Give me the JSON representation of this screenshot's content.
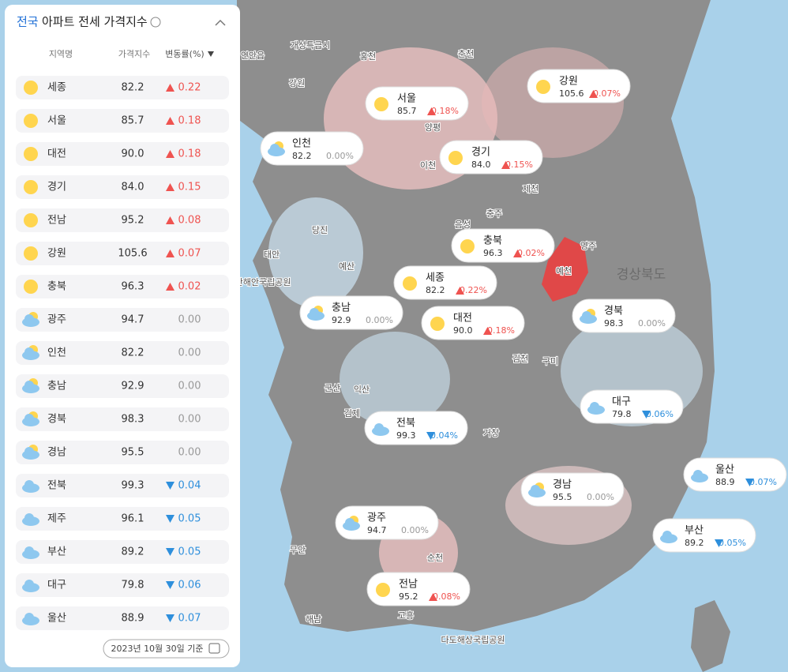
{
  "panel": {
    "title_prefix": "전국",
    "title": "아파트 전세 가격지수",
    "headers": [
      "지역명",
      "가격지수",
      "변동률(%)"
    ],
    "rows": [
      {
        "region": "세종",
        "index": "82.2",
        "change": "0.22",
        "trend": "up",
        "weather": "sun"
      },
      {
        "region": "서울",
        "index": "85.7",
        "change": "0.18",
        "trend": "up",
        "weather": "sun"
      },
      {
        "region": "대전",
        "index": "90.0",
        "change": "0.18",
        "trend": "up",
        "weather": "sun"
      },
      {
        "region": "경기",
        "index": "84.0",
        "change": "0.15",
        "trend": "up",
        "weather": "sun"
      },
      {
        "region": "전남",
        "index": "95.2",
        "change": "0.08",
        "trend": "up",
        "weather": "sun"
      },
      {
        "region": "강원",
        "index": "105.6",
        "change": "0.07",
        "trend": "up",
        "weather": "sun"
      },
      {
        "region": "충북",
        "index": "96.3",
        "change": "0.02",
        "trend": "up",
        "weather": "sun"
      },
      {
        "region": "광주",
        "index": "94.7",
        "change": "0.00",
        "trend": "flat",
        "weather": "partly"
      },
      {
        "region": "인천",
        "index": "82.2",
        "change": "0.00",
        "trend": "flat",
        "weather": "partly"
      },
      {
        "region": "충남",
        "index": "92.9",
        "change": "0.00",
        "trend": "flat",
        "weather": "partly"
      },
      {
        "region": "경북",
        "index": "98.3",
        "change": "0.00",
        "trend": "flat",
        "weather": "partly"
      },
      {
        "region": "경남",
        "index": "95.5",
        "change": "0.00",
        "trend": "flat",
        "weather": "partly"
      },
      {
        "region": "전북",
        "index": "99.3",
        "change": "0.04",
        "trend": "down",
        "weather": "cloud"
      },
      {
        "region": "제주",
        "index": "96.1",
        "change": "0.05",
        "trend": "down",
        "weather": "cloud"
      },
      {
        "region": "부산",
        "index": "89.2",
        "change": "0.05",
        "trend": "down",
        "weather": "cloud"
      },
      {
        "region": "대구",
        "index": "79.8",
        "change": "0.06",
        "trend": "down",
        "weather": "cloud"
      },
      {
        "region": "울산",
        "index": "88.9",
        "change": "0.07",
        "trend": "down",
        "weather": "cloud"
      }
    ],
    "date": "2023년 10월 30일 기준"
  },
  "map": {
    "places": [
      "개성특급시",
      "연안읍",
      "춘천",
      "강원",
      "홍천",
      "양평",
      "이천",
      "제천",
      "충주",
      "음성",
      "당진",
      "태안",
      "예산",
      "예천",
      "영주",
      "경상북도",
      "김천",
      "구미",
      "군산",
      "익산",
      "김제",
      "거창",
      "순천",
      "고흥",
      "무안",
      "해남",
      "다도해상국립공원",
      "태안해안국립공원"
    ],
    "callouts": [
      {
        "region": "서울",
        "index": "85.7",
        "change": "0.18%",
        "trend": "up",
        "weather": "sun"
      },
      {
        "region": "강원",
        "index": "105.6",
        "change": "0.07%",
        "trend": "up",
        "weather": "sun"
      },
      {
        "region": "인천",
        "index": "82.2",
        "change": "0.00%",
        "trend": "flat",
        "weather": "partly"
      },
      {
        "region": "경기",
        "index": "84.0",
        "change": "0.15%",
        "trend": "up",
        "weather": "sun"
      },
      {
        "region": "충북",
        "index": "96.3",
        "change": "0.02%",
        "trend": "up",
        "weather": "sun"
      },
      {
        "region": "세종",
        "index": "82.2",
        "change": "0.22%",
        "trend": "up",
        "weather": "sun"
      },
      {
        "region": "충남",
        "index": "92.9",
        "change": "0.00%",
        "trend": "flat",
        "weather": "partly"
      },
      {
        "region": "대전",
        "index": "90.0",
        "change": "0.18%",
        "trend": "up",
        "weather": "sun"
      },
      {
        "region": "경북",
        "index": "98.3",
        "change": "0.00%",
        "trend": "flat",
        "weather": "partly"
      },
      {
        "region": "대구",
        "index": "79.8",
        "change": "0.06%",
        "trend": "down",
        "weather": "cloud"
      },
      {
        "region": "전북",
        "index": "99.3",
        "change": "0.04%",
        "trend": "down",
        "weather": "cloud"
      },
      {
        "region": "울산",
        "index": "88.9",
        "change": "0.07%",
        "trend": "down",
        "weather": "cloud"
      },
      {
        "region": "경남",
        "index": "95.5",
        "change": "0.00%",
        "trend": "flat",
        "weather": "partly"
      },
      {
        "region": "광주",
        "index": "94.7",
        "change": "0.00%",
        "trend": "flat",
        "weather": "partly"
      },
      {
        "region": "부산",
        "index": "89.2",
        "change": "0.05%",
        "trend": "down",
        "weather": "cloud"
      },
      {
        "region": "전남",
        "index": "95.2",
        "change": "0.08%",
        "trend": "up",
        "weather": "sun"
      }
    ]
  }
}
